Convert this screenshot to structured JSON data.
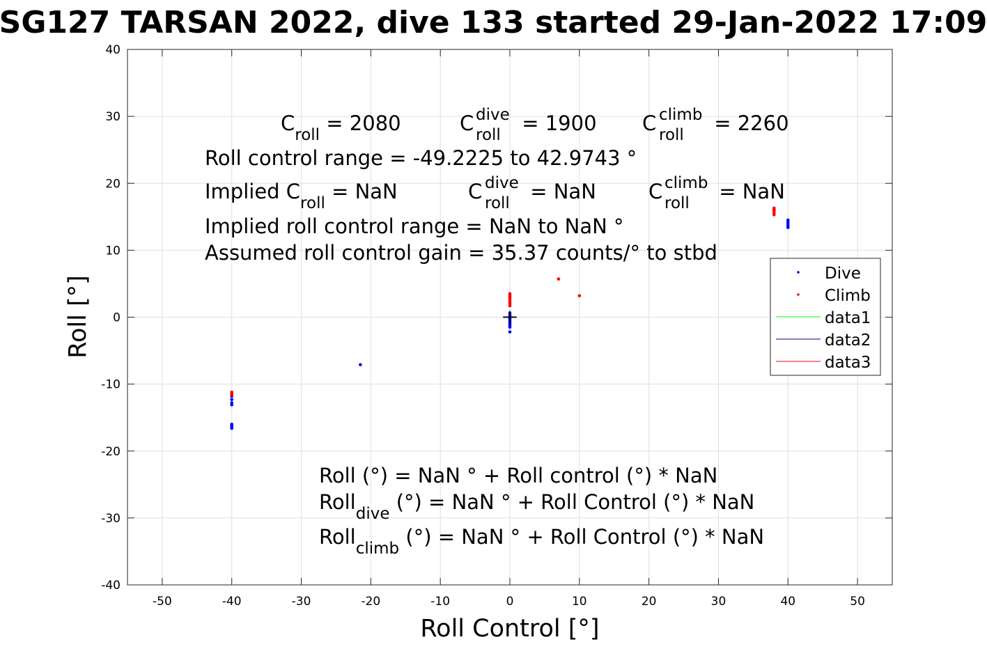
{
  "chart_data": {
    "type": "scatter",
    "title": "SG127 TARSAN 2022, dive 133 started 29-Jan-2022 17:09",
    "xlabel": "Roll Control [°]",
    "ylabel": "Roll [°]",
    "xlim": [
      -55,
      55
    ],
    "ylim": [
      -40,
      40
    ],
    "xticks": [
      -50,
      -40,
      -30,
      -20,
      -10,
      0,
      10,
      20,
      30,
      40,
      50
    ],
    "yticks": [
      -40,
      -30,
      -20,
      -10,
      0,
      10,
      20,
      30,
      40
    ],
    "xtick_labels": [
      "-50",
      "-40",
      "-30",
      "-20",
      "-10",
      "0",
      "10",
      "20",
      "30",
      "40",
      "50"
    ],
    "ytick_labels": [
      "-40",
      "-30",
      "-20",
      "-10",
      "0",
      "10",
      "20",
      "30",
      "40"
    ],
    "grid": true,
    "legend_position": "right",
    "series": [
      {
        "name": "Dive",
        "color": "#0000ff",
        "points": [
          [
            -40,
            -11.8
          ],
          [
            -40,
            -12.3
          ],
          [
            -40,
            -12.8
          ],
          [
            -40,
            -13.1
          ],
          [
            -40,
            -16.0
          ],
          [
            -40,
            -16.2
          ],
          [
            -40,
            -16.4
          ],
          [
            -40,
            -16.6
          ],
          [
            -21.5,
            -7.1
          ],
          [
            0,
            0.6
          ],
          [
            0,
            0.3
          ],
          [
            0,
            0.1
          ],
          [
            0,
            -0.1
          ],
          [
            0,
            -0.3
          ],
          [
            0,
            -0.5
          ],
          [
            0,
            -0.7
          ],
          [
            0,
            -0.9
          ],
          [
            0,
            -1.1
          ],
          [
            0,
            -1.3
          ],
          [
            0,
            -1.5
          ],
          [
            0,
            -2.2
          ],
          [
            40,
            14.5
          ],
          [
            40,
            14.2
          ],
          [
            40,
            13.9
          ],
          [
            40,
            13.6
          ],
          [
            40,
            13.4
          ]
        ]
      },
      {
        "name": "Climb",
        "color": "#ff0000",
        "points": [
          [
            -40,
            -11.2
          ],
          [
            -40,
            -11.4
          ],
          [
            -40,
            -11.6
          ],
          [
            0,
            1.7
          ],
          [
            0,
            2.0
          ],
          [
            0,
            2.3
          ],
          [
            0,
            2.6
          ],
          [
            0,
            2.9
          ],
          [
            0,
            3.1
          ],
          [
            0,
            3.3
          ],
          [
            0,
            3.5
          ],
          [
            7,
            5.7
          ],
          [
            10,
            3.2
          ],
          [
            38,
            15.3
          ],
          [
            38,
            15.6
          ],
          [
            38,
            15.9
          ],
          [
            38,
            16.1
          ],
          [
            38,
            16.3
          ]
        ]
      }
    ],
    "line_series": [
      {
        "name": "data1",
        "color": "#00ff00",
        "x": [],
        "y": []
      },
      {
        "name": "data2",
        "color": "#000080",
        "x": [
          -1,
          1
        ],
        "y": [
          0,
          0
        ]
      },
      {
        "name": "data3",
        "color": "#ff0000",
        "x": [],
        "y": []
      }
    ],
    "marker": {
      "x": 0,
      "y": 0,
      "color": "#000000"
    }
  },
  "annotations": {
    "c_roll_label": "C",
    "c_roll_sub": "roll",
    "c_roll_value": " = 2080",
    "c_dive_label": "C",
    "c_dive_sup": "dive",
    "c_dive_sub": "roll",
    "c_dive_value": " = 1900",
    "c_climb_label": "C",
    "c_climb_sup": "climb",
    "c_climb_sub": "roll",
    "c_climb_value": " = 2260",
    "range_line": "Roll control range = -49.2225 to 42.9743 °",
    "implied_prefix": "Implied C",
    "implied_sub": "roll",
    "implied_value": " =  NaN",
    "implied_dive_label": "C",
    "implied_dive_sup": "dive",
    "implied_dive_sub": "roll",
    "implied_dive_value": " =  NaN",
    "implied_climb_label": "C",
    "implied_climb_sup": "climb",
    "implied_climb_sub": "roll",
    "implied_climb_value": " =  NaN",
    "implied_range_line": "Implied roll control range = NaN to NaN °",
    "gain_line": "Assumed roll control gain = 35.37 counts/° to stbd",
    "eq1": "Roll (°) = NaN ° + Roll control (°) * NaN",
    "eq2_prefix": "Roll",
    "eq2_sub": "dive",
    "eq2_rest": " (°) = NaN ° + Roll Control (°) * NaN",
    "eq3_prefix": "Roll",
    "eq3_sub": "climb",
    "eq3_rest": " (°) = NaN ° + Roll Control (°) * NaN"
  }
}
